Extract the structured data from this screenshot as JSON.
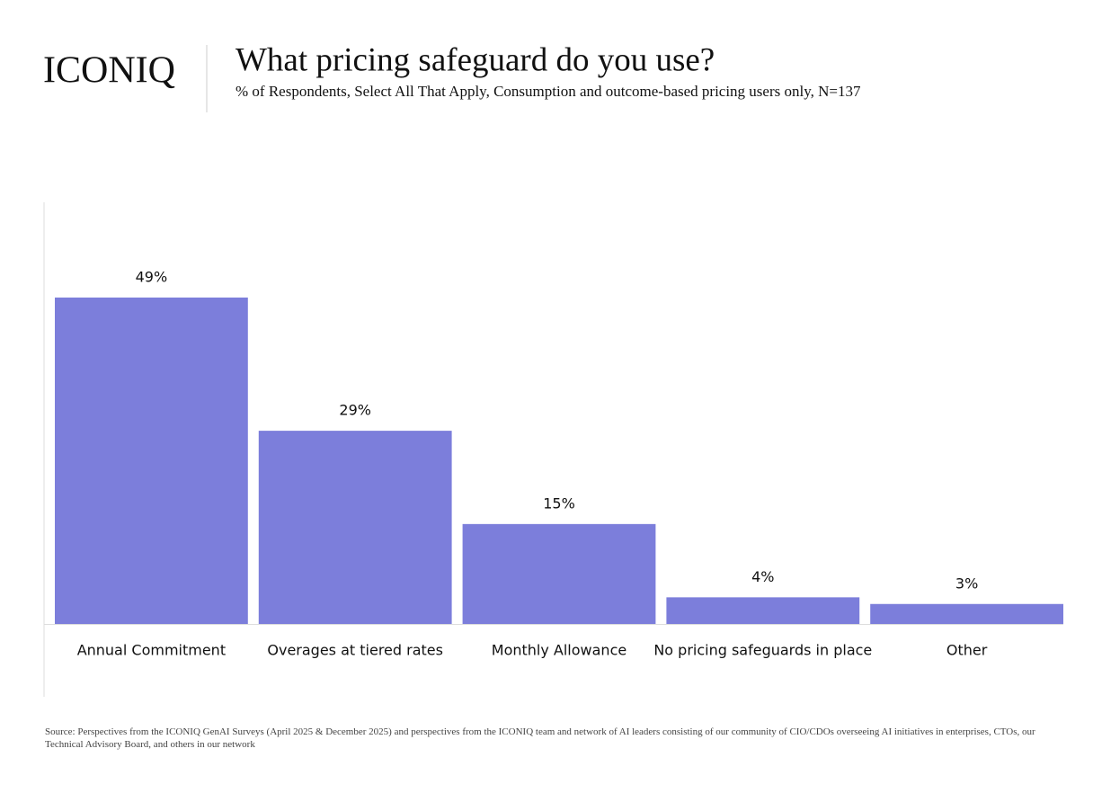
{
  "brand": "ICONIQ",
  "chart_data": {
    "type": "bar",
    "title": "What pricing safeguard do you use?",
    "subtitle": "% of Respondents, Select All That Apply, Consumption and outcome-based pricing users only, N=137",
    "categories": [
      "Annual Commitment",
      "Overages at tiered rates",
      "Monthly Allowance",
      "No pricing safeguards in place",
      "Other"
    ],
    "values": [
      49,
      29,
      15,
      4,
      3
    ],
    "value_labels": [
      "49%",
      "29%",
      "15%",
      "4%",
      "3%"
    ],
    "color": "#7c7edb",
    "source": "Source: Perspectives from the ICONIQ GenAI Surveys (April 2025 & December 2025) and perspectives from the ICONIQ team and network of AI leaders consisting of our community of CIO/CDOs overseeing AI initiatives in enterprises, CTOs, our Technical Advisory Board, and others in our network"
  }
}
